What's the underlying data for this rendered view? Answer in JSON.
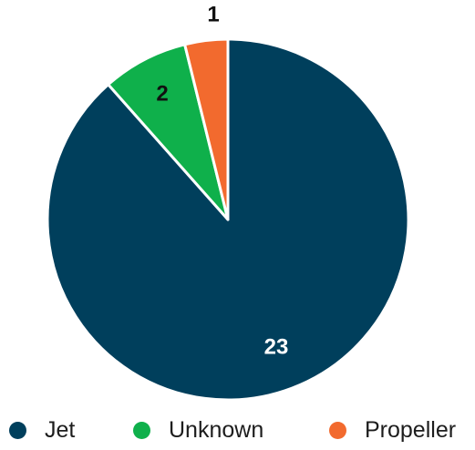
{
  "chart_data": {
    "type": "pie",
    "title": "",
    "slices": [
      {
        "label": "Jet",
        "value": 23,
        "color": "#003f5c"
      },
      {
        "label": "Unknown",
        "value": 2,
        "color": "#0fb04b"
      },
      {
        "label": "Propeller",
        "value": 1,
        "color": "#f26a2e"
      }
    ],
    "data_labels": [
      "23",
      "2",
      "1"
    ],
    "legend": {
      "position": "bottom"
    }
  }
}
